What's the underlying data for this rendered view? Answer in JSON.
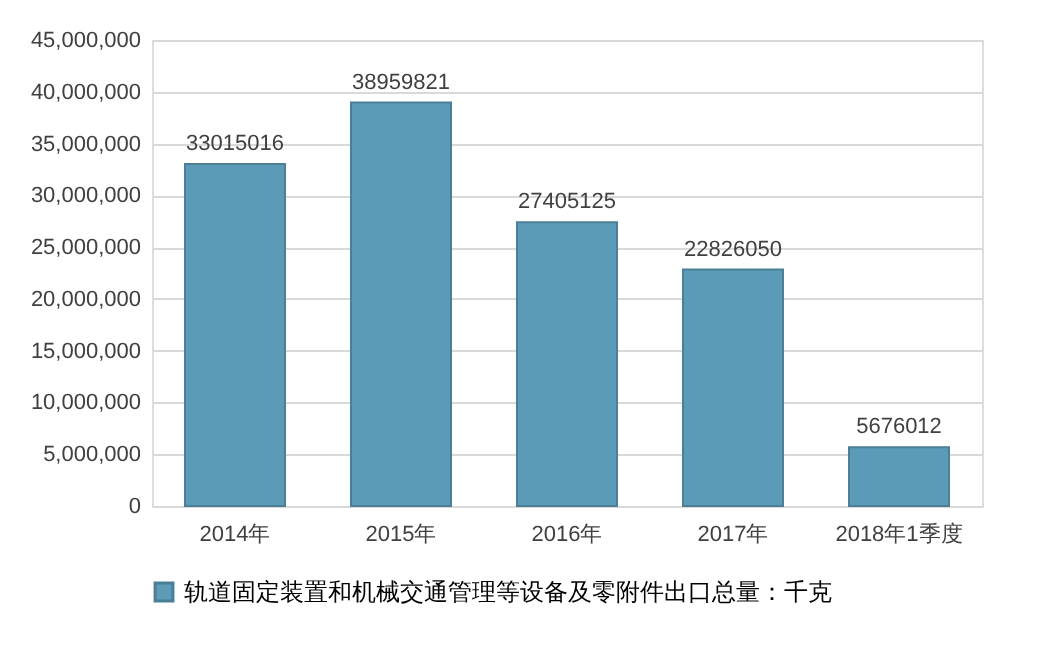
{
  "chart_data": {
    "type": "bar",
    "categories": [
      "2014年",
      "2015年",
      "2016年",
      "2017年",
      "2018年1季度"
    ],
    "series": [
      {
        "name": "轨道固定装置和机械交通管理等设备及零附件出口总量：千克",
        "color": "#5b9bb8",
        "values": [
          33015016,
          38959821,
          27405125,
          22826050,
          5676012
        ]
      }
    ],
    "ylim": [
      0,
      45000000
    ],
    "yticks": [
      {
        "value": 0,
        "label": "0"
      },
      {
        "value": 5000000,
        "label": "5,000,000"
      },
      {
        "value": 10000000,
        "label": "10,000,000"
      },
      {
        "value": 15000000,
        "label": "15,000,000"
      },
      {
        "value": 20000000,
        "label": "20,000,000"
      },
      {
        "value": 25000000,
        "label": "25,000,000"
      },
      {
        "value": 30000000,
        "label": "30,000,000"
      },
      {
        "value": 35000000,
        "label": "35,000,000"
      },
      {
        "value": 40000000,
        "label": "40,000,000"
      },
      {
        "value": 45000000,
        "label": "45,000,000"
      }
    ],
    "grid": "y",
    "legend": "bottom",
    "data_labels": true
  }
}
